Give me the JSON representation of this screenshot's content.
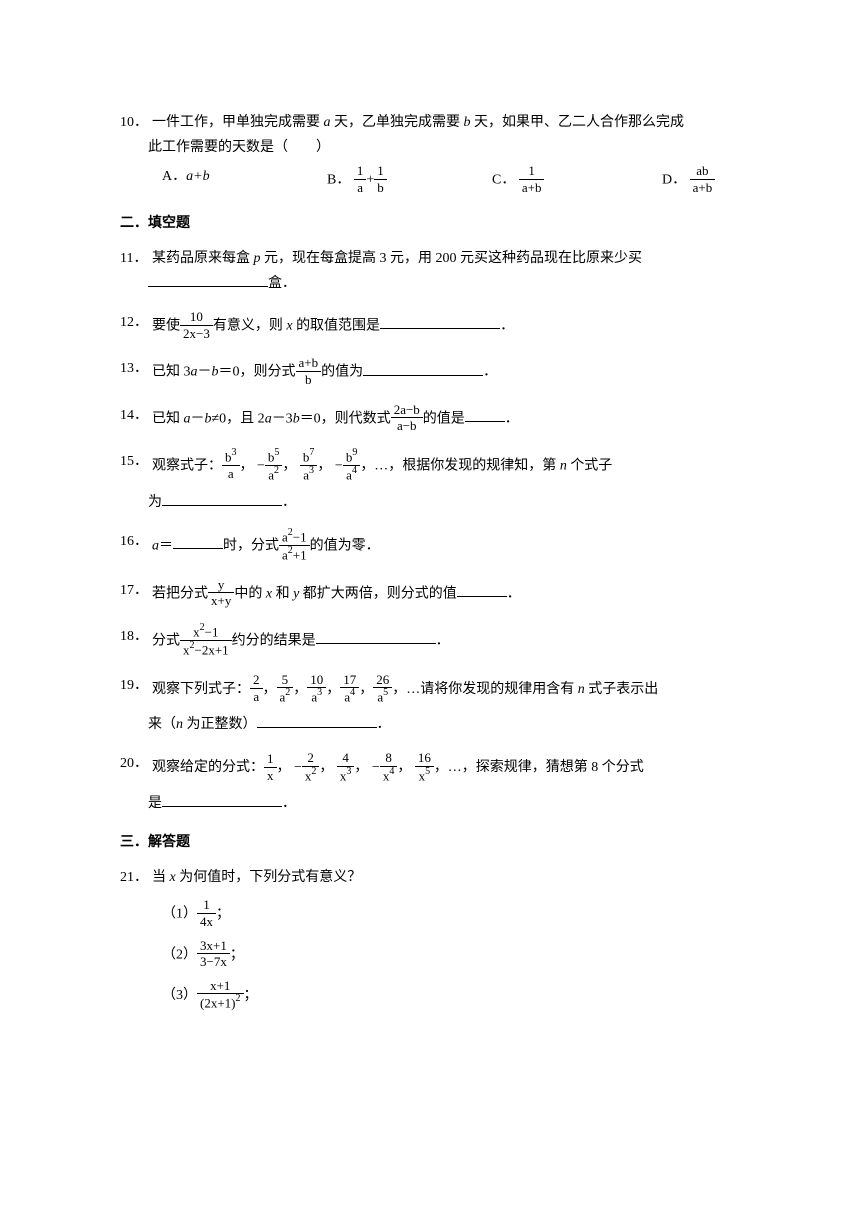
{
  "q10": {
    "num": "10．",
    "text1": "一件工作，甲单独完成需要 ",
    "var_a": "a",
    "text2": " 天，乙单独完成需要 ",
    "var_b": "b",
    "text3": " 天，如果甲、乙二人合作那么完成",
    "text4": "此工作需要的天数是（　　）",
    "optA_label": "A．",
    "optA_val": "a+b",
    "optB_label": "B．",
    "optB_num1": "1",
    "optB_den1": "a",
    "optB_plus": "+",
    "optB_num2": "1",
    "optB_den2": "b",
    "optC_label": "C．",
    "optC_num": "1",
    "optC_den": "a+b",
    "optD_label": "D．",
    "optD_num": "ab",
    "optD_den": "a+b"
  },
  "section2": "二．填空题",
  "q11": {
    "num": "11．",
    "text1": "某药品原来每盒 ",
    "var_p": "p",
    "text2": " 元，现在每盒提高 3 元，用 200 元买这种药品现在比原来少买",
    "text3": "盒．"
  },
  "q12": {
    "num": "12．",
    "text1": "要使",
    "frac_num": "10",
    "frac_den": "2x−3",
    "text2": "有意义，则 ",
    "var_x": "x",
    "text3": " 的取值范围是",
    "period": "．"
  },
  "q13": {
    "num": "13．",
    "text1": "已知 3",
    "var_a": "a",
    "minus": "－",
    "var_b": "b",
    "text2": "＝0，则分式",
    "frac_num": "a+b",
    "frac_den": "b",
    "text3": "的值为",
    "period": "．"
  },
  "q14": {
    "num": "14．",
    "text1": "已知 ",
    "var_a": "a",
    "minus": "－",
    "var_b": "b",
    "text2": "≠0，且 2",
    "var_a2": "a",
    "text3": "－3",
    "var_b2": "b",
    "text4": "＝0，则代数式",
    "frac_num": "2a−b",
    "frac_den": "a−b",
    "text5": "的值是",
    "period": "．"
  },
  "q15": {
    "num": "15．",
    "text1": "观察式子：",
    "f1_num": "b",
    "f1_exp": "3",
    "f1_den": "a",
    "comma": "，",
    "neg": "−",
    "f2_num": "b",
    "f2_exp": "5",
    "f2_den": "a",
    "f2_dexp": "2",
    "f3_num": "b",
    "f3_exp": "7",
    "f3_den": "a",
    "f3_dexp": "3",
    "f4_num": "b",
    "f4_exp": "9",
    "f4_den": "a",
    "f4_dexp": "4",
    "dots": "，…，",
    "text2": "根据你发现的规律知，第 ",
    "var_n": "n",
    "text3": " 个式子",
    "text4": "为",
    "period": "．"
  },
  "q16": {
    "num": "16．",
    "var_a": "a",
    "text1": "＝",
    "text2": "时，分式",
    "frac_num_a": "a",
    "frac_nexp": "2",
    "frac_num_m1": "−1",
    "frac_den_a": "a",
    "frac_dexp": "2",
    "frac_den_p1": "+1",
    "text3": "的值为零．"
  },
  "q17": {
    "num": "17．",
    "text1": "若把分式",
    "frac_num": "y",
    "frac_den": "x+y",
    "text2": "中的 ",
    "var_x": "x",
    "text3": " 和 ",
    "var_y": "y",
    "text4": " 都扩大两倍，则分式的值",
    "period": "．"
  },
  "q18": {
    "num": "18．",
    "text1": "分式",
    "frac_num_x": "x",
    "frac_nexp": "2",
    "frac_num_m1": "−1",
    "frac_den_x": "x",
    "frac_dexp": "2",
    "frac_den_rest": "−2x+1",
    "text2": "约分的结果是",
    "period": "．"
  },
  "q19": {
    "num": "19．",
    "text1": "观察下列式子：",
    "f1_num": "2",
    "f1_den": "a",
    "f2_num": "5",
    "f2_den": "a",
    "f2_dexp": "2",
    "f3_num": "10",
    "f3_den": "a",
    "f3_dexp": "3",
    "f4_num": "17",
    "f4_den": "a",
    "f4_dexp": "4",
    "f5_num": "26",
    "f5_den": "a",
    "f5_dexp": "5",
    "comma": "，",
    "text2": "，…请将你发现的规律用含有 ",
    "var_n": "n",
    "text3": " 式子表示出",
    "text4": "来（",
    "var_n2": "n",
    "text5": " 为正整数）",
    "period": "．"
  },
  "q20": {
    "num": "20．",
    "text1": "观察给定的分式：",
    "f1_num": "1",
    "f1_den": "x",
    "neg": "−",
    "f2_num": "2",
    "f2_den": "x",
    "f2_dexp": "2",
    "f3_num": "4",
    "f3_den": "x",
    "f3_dexp": "3",
    "f4_num": "8",
    "f4_den": "x",
    "f4_dexp": "4",
    "f5_num": "16",
    "f5_den": "x",
    "f5_dexp": "5",
    "comma": "，",
    "text2": "，…，探索规律，猜想第 8 个分式",
    "text3": "是",
    "period": "．"
  },
  "section3": "三．解答题",
  "q21": {
    "num": "21．",
    "text1": "当 ",
    "var_x": "x",
    "text2": " 为何值时，下列分式有意义？",
    "s1_label": "（1）",
    "s1_num": "1",
    "s1_den": "4x",
    "semi": "；",
    "s2_label": "（2）",
    "s2_num": "3x+1",
    "s2_den": "3−7x",
    "s3_label": "（3）",
    "s3_num": "x+1",
    "s3_den_l": "(2x+1)",
    "s3_den_exp": "2"
  }
}
